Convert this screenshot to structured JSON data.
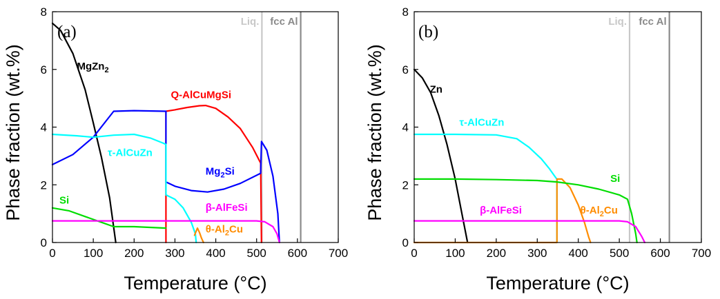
{
  "chart_data": [
    {
      "type": "line",
      "panel_label": "(a)",
      "xlabel": "Temperature (°C)",
      "ylabel": "Phase fraction (wt.%)",
      "xlim": [
        0,
        700
      ],
      "ylim": [
        0,
        8
      ],
      "xticks": [
        0,
        100,
        200,
        300,
        400,
        500,
        600,
        700
      ],
      "yticks": [
        0,
        2,
        4,
        6,
        8
      ],
      "grid": false,
      "legend": "none",
      "vlines": [
        {
          "x": 513,
          "label": "Liq.",
          "color": "#c8c8c8"
        },
        {
          "x": 608,
          "label": "fcc Al",
          "color": "#8a8a8a"
        }
      ],
      "series": [
        {
          "name": "MgZn₂",
          "color": "#000000",
          "points": [
            [
              0,
              7.6
            ],
            [
              20,
              7.35
            ],
            [
              50,
              6.55
            ],
            [
              80,
              5.3
            ],
            [
              100,
              4.15
            ],
            [
              120,
              2.95
            ],
            [
              140,
              1.55
            ],
            [
              155,
              0
            ]
          ],
          "label_value": [
            60,
            6.0
          ]
        },
        {
          "name": "Q-AlCuMgSi",
          "color": "#ff0000",
          "points": [
            [
              278,
              0
            ],
            [
              278,
              4.55
            ],
            [
              300,
              4.6
            ],
            [
              330,
              4.68
            ],
            [
              360,
              4.74
            ],
            [
              375,
              4.75
            ],
            [
              400,
              4.65
            ],
            [
              430,
              4.35
            ],
            [
              460,
              3.95
            ],
            [
              490,
              3.3
            ],
            [
              510,
              2.75
            ],
            [
              512,
              0
            ]
          ],
          "label_value": [
            290,
            5.0
          ]
        },
        {
          "name": "Mg₂Si",
          "color": "#0000ff",
          "points": [
            [
              0,
              2.7
            ],
            [
              50,
              3.05
            ],
            [
              100,
              3.65
            ],
            [
              150,
              4.55
            ],
            [
              200,
              4.57
            ],
            [
              278,
              4.55
            ],
            [
              278,
              2.1
            ],
            [
              300,
              1.95
            ],
            [
              340,
              1.8
            ],
            [
              380,
              1.75
            ],
            [
              420,
              1.85
            ],
            [
              460,
              2.05
            ],
            [
              510,
              2.4
            ],
            [
              512,
              3.5
            ],
            [
              525,
              3.2
            ],
            [
              540,
              2.3
            ],
            [
              552,
              1.0
            ],
            [
              556,
              0
            ]
          ],
          "label_value": [
            375,
            2.35
          ]
        },
        {
          "name": "τ-AlCuZn",
          "color": "#00ffff",
          "points": [
            [
              0,
              3.75
            ],
            [
              60,
              3.7
            ],
            [
              100,
              3.65
            ],
            [
              150,
              3.72
            ],
            [
              200,
              3.75
            ],
            [
              240,
              3.62
            ],
            [
              270,
              3.45
            ],
            [
              278,
              3.4
            ],
            [
              278,
              1.65
            ],
            [
              300,
              1.5
            ],
            [
              320,
              1.2
            ],
            [
              340,
              0.7
            ],
            [
              350,
              0.3
            ],
            [
              352,
              0
            ]
          ],
          "label_value": [
            135,
            3.0
          ]
        },
        {
          "name": "Si",
          "color": "#00dd00",
          "points": [
            [
              0,
              1.2
            ],
            [
              40,
              1.1
            ],
            [
              80,
              0.9
            ],
            [
              120,
              0.7
            ],
            [
              150,
              0.55
            ],
            [
              200,
              0.55
            ],
            [
              278,
              0.5
            ]
          ],
          "label_value": [
            17,
            1.35
          ]
        },
        {
          "name": "β-AlFeSi",
          "color": "#ff00ff",
          "points": [
            [
              0,
              0.75
            ],
            [
              100,
              0.75
            ],
            [
              200,
              0.75
            ],
            [
              300,
              0.75
            ],
            [
              400,
              0.75
            ],
            [
              500,
              0.75
            ],
            [
              520,
              0.72
            ],
            [
              540,
              0.55
            ],
            [
              550,
              0.3
            ],
            [
              556,
              0
            ]
          ],
          "label_value": [
            375,
            1.1
          ]
        },
        {
          "name": "θ-Al₂Cu",
          "color": "#ff8c00",
          "points": [
            [
              348,
              0.25
            ],
            [
              355,
              0.5
            ],
            [
              360,
              0.35
            ],
            [
              365,
              0.15
            ],
            [
              370,
              0
            ]
          ],
          "label_value": [
            375,
            0.35
          ]
        }
      ]
    },
    {
      "type": "line",
      "panel_label": "(b)",
      "xlabel": "Temperature (°C)",
      "ylabel": "Phase fraction (wt.%)",
      "xlim": [
        0,
        700
      ],
      "ylim": [
        0,
        8
      ],
      "xticks": [
        0,
        100,
        200,
        300,
        400,
        500,
        600,
        700
      ],
      "yticks": [
        0,
        2,
        4,
        6,
        8
      ],
      "grid": false,
      "legend": "none",
      "vlines": [
        {
          "x": 525,
          "label": "Liq.",
          "color": "#c8c8c8"
        },
        {
          "x": 622,
          "label": "fcc Al",
          "color": "#8a8a8a"
        }
      ],
      "series": [
        {
          "name": "Zn",
          "color": "#000000",
          "points": [
            [
              0,
              6.0
            ],
            [
              20,
              5.7
            ],
            [
              40,
              5.2
            ],
            [
              60,
              4.4
            ],
            [
              80,
              3.4
            ],
            [
              100,
              2.2
            ],
            [
              115,
              1.1
            ],
            [
              130,
              0
            ]
          ],
          "label_value": [
            38,
            5.2
          ]
        },
        {
          "name": "τ-AlCuZn",
          "color": "#00ffff",
          "points": [
            [
              0,
              3.75
            ],
            [
              100,
              3.75
            ],
            [
              200,
              3.73
            ],
            [
              250,
              3.6
            ],
            [
              280,
              3.3
            ],
            [
              310,
              2.9
            ],
            [
              330,
              2.55
            ],
            [
              345,
              2.25
            ],
            [
              348,
              2.2
            ],
            [
              348,
              0
            ]
          ],
          "label_value": [
            110,
            4.05
          ]
        },
        {
          "name": "θ-Al₂Cu",
          "color": "#ff8c00",
          "points": [
            [
              0,
              0
            ],
            [
              348,
              0
            ],
            [
              348,
              2.2
            ],
            [
              360,
              2.2
            ],
            [
              380,
              1.9
            ],
            [
              400,
              1.3
            ],
            [
              415,
              0.7
            ],
            [
              425,
              0.2
            ],
            [
              430,
              0
            ]
          ],
          "label_value": [
            405,
            1.0
          ]
        },
        {
          "name": "Si",
          "color": "#00dd00",
          "points": [
            [
              0,
              2.2
            ],
            [
              100,
              2.2
            ],
            [
              200,
              2.18
            ],
            [
              300,
              2.15
            ],
            [
              348,
              2.1
            ],
            [
              400,
              2.0
            ],
            [
              450,
              1.85
            ],
            [
              500,
              1.65
            ],
            [
              520,
              1.5
            ],
            [
              530,
              1.0
            ],
            [
              540,
              0.3
            ],
            [
              543,
              0
            ]
          ],
          "label_value": [
            478,
            2.1
          ]
        },
        {
          "name": "β-AlFeSi",
          "color": "#ff00ff",
          "points": [
            [
              0,
              0.75
            ],
            [
              100,
              0.75
            ],
            [
              200,
              0.75
            ],
            [
              300,
              0.75
            ],
            [
              400,
              0.75
            ],
            [
              500,
              0.75
            ],
            [
              520,
              0.72
            ],
            [
              540,
              0.55
            ],
            [
              555,
              0.2
            ],
            [
              562,
              0
            ]
          ],
          "label_value": [
            160,
            1.0
          ]
        }
      ]
    }
  ]
}
